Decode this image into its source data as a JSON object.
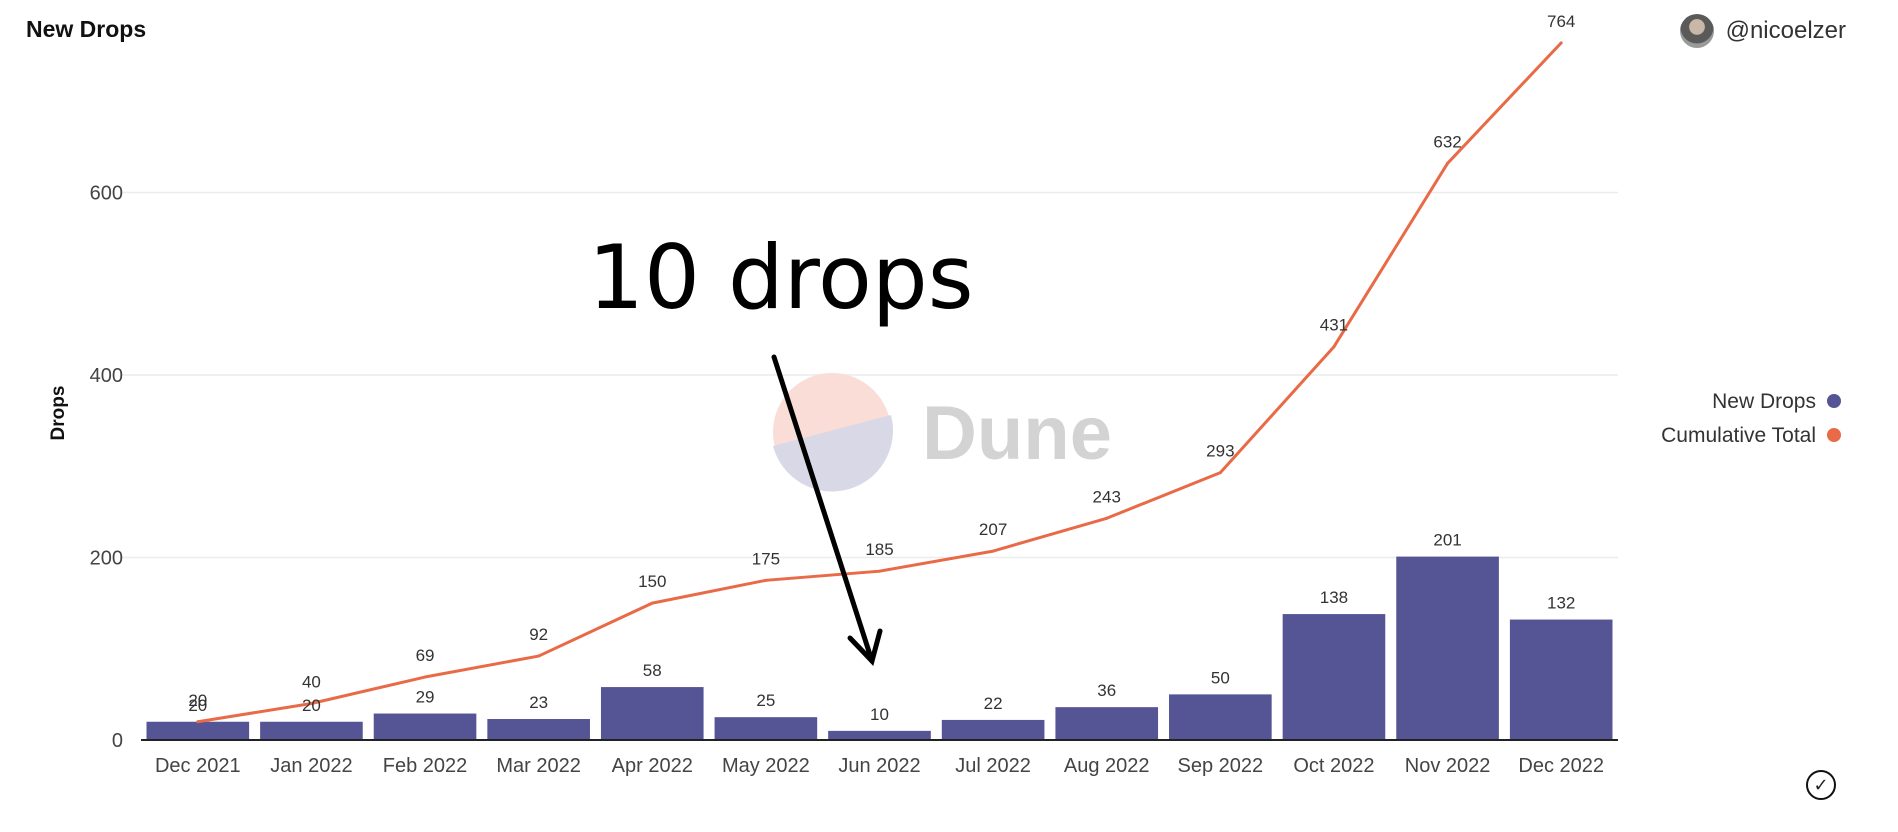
{
  "header": {
    "title": "New Drops",
    "author": "@nicoelzer"
  },
  "watermark": "Dune",
  "annotation": "10 drops",
  "colors": {
    "bars": "#555494",
    "line": "#e86a46",
    "grid": "#ececec",
    "axis": "#222222"
  },
  "icons": {
    "status": "check-circle-icon",
    "avatar": "user-avatar"
  },
  "chart_data": {
    "type": "bar",
    "ylabel": "Drops",
    "ylim": [
      0,
      800
    ],
    "yticks": [
      0,
      200,
      400,
      600
    ],
    "grid": true,
    "legend_position": "right",
    "categories": [
      "Dec 2021",
      "Jan 2022",
      "Feb 2022",
      "Mar 2022",
      "Apr 2022",
      "May 2022",
      "Jun 2022",
      "Jul 2022",
      "Aug 2022",
      "Sep 2022",
      "Oct 2022",
      "Nov 2022",
      "Dec 2022"
    ],
    "series": [
      {
        "name": "New Drops",
        "kind": "bar",
        "values": [
          20,
          20,
          29,
          23,
          58,
          25,
          10,
          22,
          36,
          50,
          138,
          201,
          132
        ]
      },
      {
        "name": "Cumulative Total",
        "kind": "line",
        "values": [
          20,
          40,
          69,
          92,
          150,
          175,
          185,
          207,
          243,
          293,
          431,
          632,
          764
        ]
      }
    ]
  }
}
